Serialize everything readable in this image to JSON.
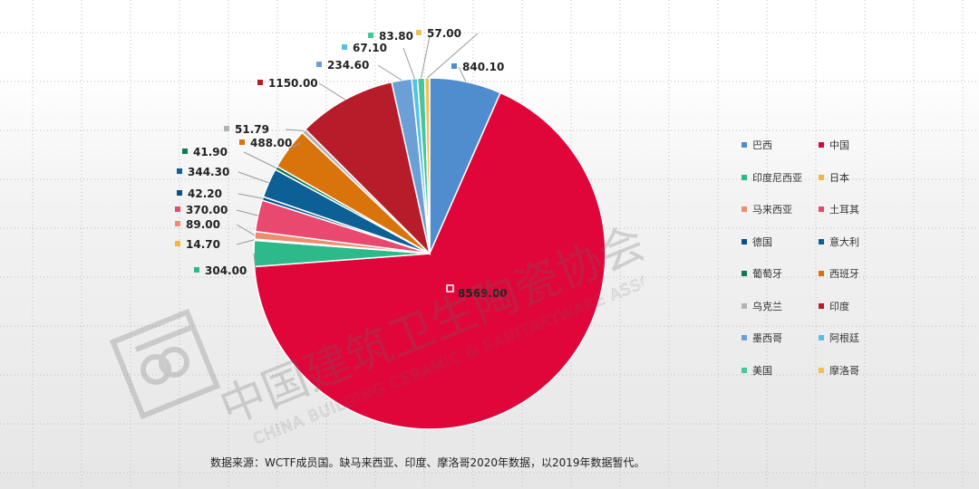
{
  "chart_data": {
    "type": "pie",
    "categories": [
      "巴西",
      "中国",
      "印度尼西亚",
      "日本",
      "马来西亚",
      "土耳其",
      "德国",
      "意大利",
      "葡萄牙",
      "西班牙",
      "乌克兰",
      "印度",
      "墨西哥",
      "阿根廷",
      "美国",
      "摩洛哥"
    ],
    "values": [
      840.1,
      8569.0,
      304.0,
      14.7,
      89.0,
      370.0,
      42.2,
      344.3,
      41.9,
      488.0,
      51.79,
      1150.0,
      234.6,
      67.1,
      83.8,
      57.0
    ],
    "value_labels": [
      "840.10",
      "8569.00",
      "304.00",
      "14.70",
      "89.00",
      "370.00",
      "42.20",
      "344.30",
      "41.90",
      "488.00",
      "51.79",
      "1150.00",
      "234.60",
      "67.10",
      "83.80",
      "57.00"
    ],
    "colors": [
      "#4f8dce",
      "#e0063a",
      "#2db98a",
      "#f4b640",
      "#ee8d6e",
      "#e9486f",
      "#0d4f8c",
      "#0c6096",
      "#127a52",
      "#d9730b",
      "#b3b3b3",
      "#b71c2b",
      "#6b9fd6",
      "#55c2e4",
      "#4cc49b",
      "#f0c055"
    ],
    "legend_placement": "right",
    "grid": true
  },
  "watermark": {
    "chinese": "中国建筑卫生陶瓷协会",
    "english": "CHINA BUILDING CERAMIC & SANITARYWARE ASSOCIATION"
  },
  "source_note": "数据来源：WCTF成员国。缺马来西亚、印度、摩洛哥2020年数据，以2019年数据暂代。"
}
